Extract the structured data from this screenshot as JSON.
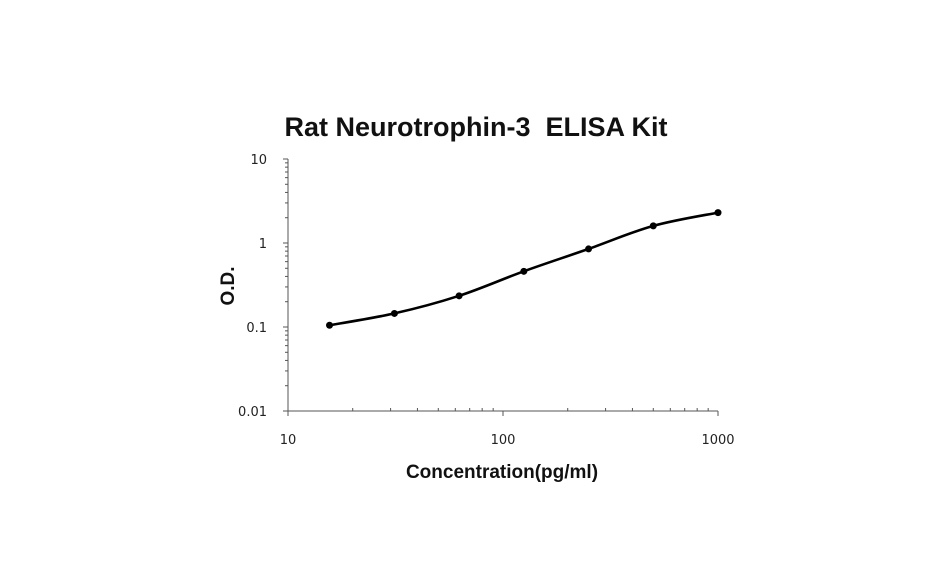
{
  "chart_data": {
    "type": "line",
    "title": "Rat Neurotrophin-3  ELISA Kit",
    "xlabel": "Concentration(pg/ml)",
    "ylabel": "O.D.",
    "x_scale": "log",
    "y_scale": "log",
    "xlim": [
      10,
      1000
    ],
    "ylim": [
      0.01,
      10
    ],
    "x_ticks": [
      "10",
      "100",
      "1000"
    ],
    "y_ticks": [
      "0.01",
      "0.1",
      "1",
      "10"
    ],
    "grid": false,
    "legend": "none",
    "series": [
      {
        "x": [
          15.6,
          31.25,
          62.5,
          125,
          250,
          500,
          1000
        ],
        "y": [
          0.105,
          0.145,
          0.235,
          0.46,
          0.85,
          1.6,
          2.3
        ]
      }
    ],
    "colors": {
      "line": "#000000",
      "axis": "#555555",
      "text": "#111111"
    }
  }
}
